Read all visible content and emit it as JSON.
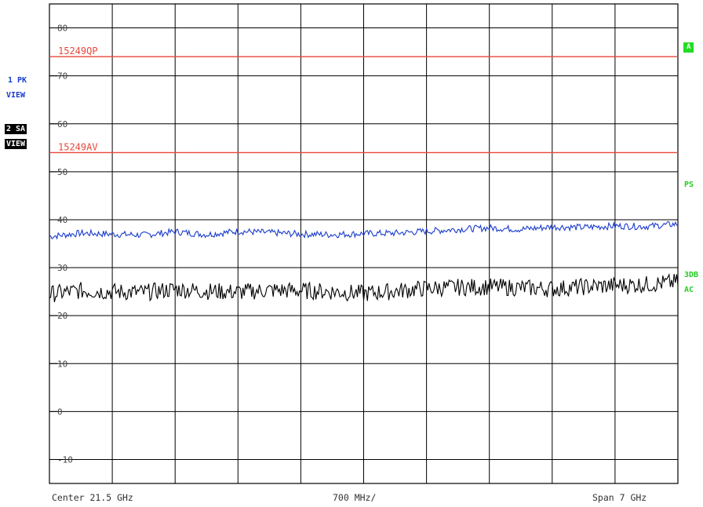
{
  "trace_labels": {
    "trace1_line1": "1 PK",
    "trace1_line2": "VIEW",
    "trace2_line1": "2 SA",
    "trace2_line2": "VIEW"
  },
  "right_labels": {
    "a": "A",
    "ps": "PS",
    "db": "3DB",
    "ac": "AC"
  },
  "footer": {
    "center": "Center  21.5 GHz",
    "div": "700 MHz/",
    "span": "Span  7 GHz"
  },
  "colors": {
    "trace1": "#1a3ccc",
    "trace2": "#000000",
    "limit": "#e8473a",
    "grid": "#000000",
    "indicator": "#22cc22"
  },
  "chart_data": {
    "type": "line",
    "x_range_ghz": [
      18.0,
      25.0
    ],
    "ylim": [
      -15,
      85
    ],
    "y_ticks": [
      80,
      70,
      60,
      50,
      40,
      30,
      20,
      10,
      0,
      -10
    ],
    "x_divisions": 10,
    "grid": true,
    "limit_lines": [
      {
        "name": "15249QP",
        "value": 74
      },
      {
        "name": "15249AV",
        "value": 54
      }
    ],
    "series": [
      {
        "name": "1 PK",
        "x": [
          18.0,
          18.35,
          18.7,
          19.05,
          19.4,
          19.75,
          20.1,
          20.45,
          20.8,
          21.15,
          21.5,
          21.85,
          22.2,
          22.55,
          22.9,
          23.25,
          23.6,
          23.95,
          24.3,
          24.65,
          25.0
        ],
        "y": [
          36.5,
          37.2,
          37.0,
          36.8,
          37.5,
          36.9,
          37.6,
          37.3,
          37.0,
          36.9,
          37.1,
          37.2,
          37.6,
          38.0,
          38.3,
          38.0,
          38.5,
          38.4,
          38.7,
          38.6,
          39.1
        ]
      },
      {
        "name": "2 SA",
        "x": [
          18.0,
          18.35,
          18.7,
          19.05,
          19.4,
          19.75,
          20.1,
          20.45,
          20.8,
          21.15,
          21.5,
          21.85,
          22.2,
          22.55,
          22.9,
          23.25,
          23.6,
          23.95,
          24.3,
          24.65,
          25.0
        ],
        "y": [
          24.5,
          25.2,
          25.0,
          24.8,
          25.5,
          25.1,
          24.9,
          25.3,
          25.2,
          25.0,
          24.6,
          25.1,
          25.7,
          25.9,
          26.0,
          25.8,
          25.6,
          26.0,
          26.3,
          26.5,
          27.0
        ]
      }
    ]
  }
}
